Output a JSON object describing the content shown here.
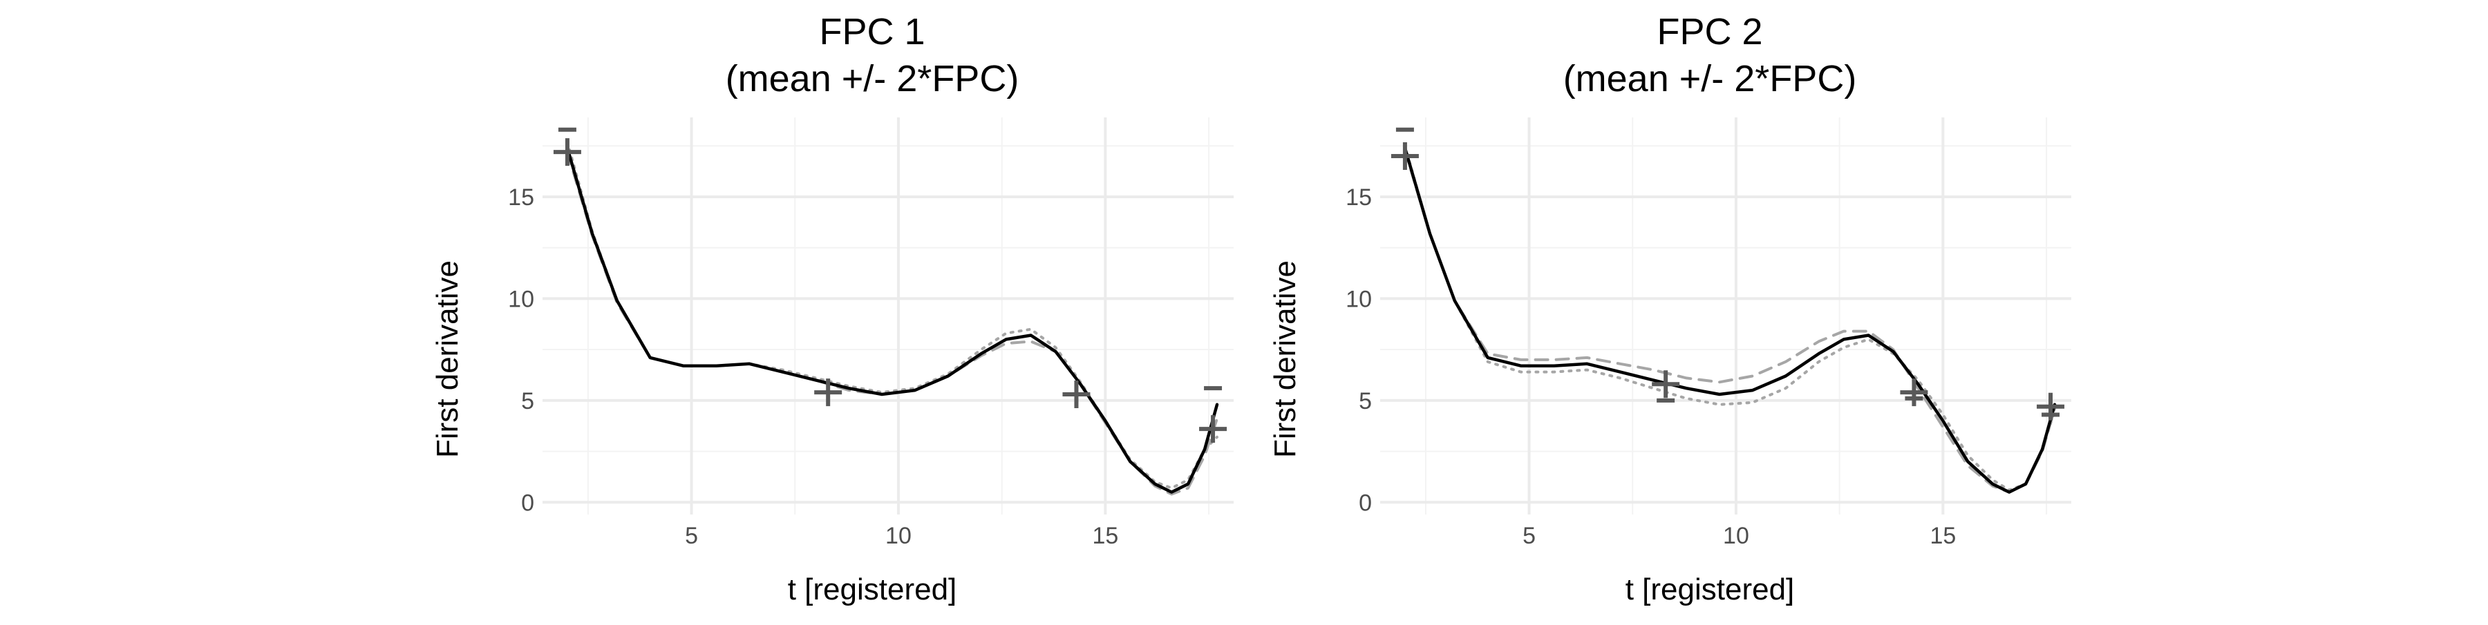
{
  "colors": {
    "mean": "#000000",
    "plus": "#a6a6a6",
    "minus": "#a6a6a6",
    "marker": "#595959",
    "grid": "#ebebeb"
  },
  "chart_data": [
    {
      "type": "line",
      "title": [
        "FPC 1",
        "(mean +/- 2*FPC)"
      ],
      "xlabel": "t [registered]",
      "ylabel": "First derivative",
      "xlim": [
        1.4,
        18.1
      ],
      "ylim": [
        -0.6,
        18.9
      ],
      "xticks": [
        5,
        10,
        15
      ],
      "yticks": [
        0,
        5,
        10,
        15
      ],
      "grid": true,
      "series": [
        {
          "role": "mean",
          "style": "solid",
          "x": [
            2,
            2.6,
            3.2,
            4,
            4.8,
            5.6,
            6.4,
            7.2,
            8,
            8.8,
            9.6,
            10.4,
            11.2,
            12,
            12.6,
            13.2,
            13.8,
            14.4,
            15,
            15.6,
            16.2,
            16.6,
            17.0,
            17.4,
            17.7
          ],
          "y": [
            17.4,
            13.2,
            9.9,
            7.1,
            6.7,
            6.7,
            6.8,
            6.4,
            6.0,
            5.6,
            5.3,
            5.5,
            6.2,
            7.3,
            8.0,
            8.2,
            7.4,
            5.8,
            4.0,
            2.0,
            0.9,
            0.5,
            0.9,
            2.6,
            4.8
          ]
        },
        {
          "role": "plus",
          "style": "dashed",
          "x": [
            2,
            2.6,
            3.2,
            4,
            4.8,
            5.6,
            6.4,
            7.2,
            8,
            8.8,
            9.6,
            10.4,
            11.2,
            12,
            12.6,
            13.2,
            13.8,
            14.4,
            15,
            15.6,
            16.2,
            16.6,
            17.0,
            17.4,
            17.7
          ],
          "y": [
            17.2,
            13.1,
            9.8,
            7.1,
            6.7,
            6.7,
            6.8,
            6.4,
            6.0,
            5.5,
            5.3,
            5.5,
            6.2,
            7.2,
            7.8,
            7.9,
            7.4,
            5.8,
            3.9,
            2.0,
            0.8,
            0.4,
            0.7,
            2.3,
            4.1
          ]
        },
        {
          "role": "minus",
          "style": "dotted",
          "x": [
            2,
            2.6,
            3.2,
            4,
            4.8,
            5.6,
            6.4,
            7.2,
            8,
            8.8,
            9.6,
            10.4,
            11.2,
            12,
            12.6,
            13.2,
            13.8,
            14.4,
            15,
            15.6,
            16.2,
            16.6,
            17.0,
            17.4,
            17.7
          ],
          "y": [
            17.7,
            13.3,
            9.9,
            7.1,
            6.7,
            6.7,
            6.8,
            6.5,
            6.1,
            5.7,
            5.4,
            5.6,
            6.3,
            7.5,
            8.3,
            8.5,
            7.6,
            5.9,
            4.0,
            2.1,
            1.0,
            0.7,
            1.1,
            2.6,
            3.2
          ]
        }
      ],
      "markers": [
        {
          "x": 2.0,
          "y": 17.2,
          "kind": "plus"
        },
        {
          "x": 2.0,
          "y": 18.3,
          "kind": "minus"
        },
        {
          "x": 8.3,
          "y": 5.4,
          "kind": "plus"
        },
        {
          "x": 14.3,
          "y": 5.3,
          "kind": "plus"
        },
        {
          "x": 17.6,
          "y": 3.6,
          "kind": "plus"
        },
        {
          "x": 17.6,
          "y": 5.6,
          "kind": "minus"
        }
      ]
    },
    {
      "type": "line",
      "title": [
        "FPC 2",
        "(mean +/- 2*FPC)"
      ],
      "xlabel": "t [registered]",
      "ylabel": "First derivative",
      "xlim": [
        1.4,
        18.1
      ],
      "ylim": [
        -0.6,
        18.9
      ],
      "xticks": [
        5,
        10,
        15
      ],
      "yticks": [
        0,
        5,
        10,
        15
      ],
      "grid": true,
      "series": [
        {
          "role": "mean",
          "style": "solid",
          "x": [
            2,
            2.6,
            3.2,
            4,
            4.8,
            5.6,
            6.4,
            7.2,
            8,
            8.8,
            9.6,
            10.4,
            11.2,
            12,
            12.6,
            13.2,
            13.8,
            14.4,
            15,
            15.6,
            16.2,
            16.6,
            17.0,
            17.4,
            17.7
          ],
          "y": [
            17.4,
            13.2,
            9.9,
            7.1,
            6.7,
            6.7,
            6.8,
            6.4,
            6.0,
            5.6,
            5.3,
            5.5,
            6.2,
            7.3,
            8.0,
            8.2,
            7.4,
            5.8,
            4.0,
            2.0,
            0.9,
            0.5,
            0.9,
            2.6,
            4.8
          ]
        },
        {
          "role": "plus",
          "style": "dashed",
          "x": [
            2,
            2.6,
            3.2,
            4,
            4.8,
            5.6,
            6.4,
            7.2,
            8,
            8.8,
            9.6,
            10.4,
            11.2,
            12,
            12.6,
            13.2,
            13.8,
            14.4,
            15,
            15.6,
            16.2,
            16.6,
            17.0,
            17.4,
            17.7
          ],
          "y": [
            17.3,
            13.2,
            9.9,
            7.3,
            7.0,
            7.0,
            7.1,
            6.8,
            6.5,
            6.1,
            5.9,
            6.2,
            6.9,
            7.9,
            8.4,
            8.4,
            7.5,
            5.6,
            3.7,
            1.8,
            0.8,
            0.5,
            0.9,
            2.5,
            4.6
          ]
        },
        {
          "role": "minus",
          "style": "dotted",
          "x": [
            2,
            2.6,
            3.2,
            4,
            4.8,
            5.6,
            6.4,
            7.2,
            8,
            8.8,
            9.6,
            10.4,
            11.2,
            12,
            12.6,
            13.2,
            13.8,
            14.4,
            15,
            15.6,
            16.2,
            16.6,
            17.0,
            17.4,
            17.7
          ],
          "y": [
            17.5,
            13.2,
            9.9,
            6.9,
            6.4,
            6.4,
            6.5,
            6.1,
            5.6,
            5.1,
            4.8,
            4.9,
            5.6,
            6.9,
            7.6,
            8.0,
            7.3,
            6.0,
            4.3,
            2.3,
            1.1,
            0.6,
            0.9,
            2.6,
            4.5
          ]
        }
      ],
      "markers": [
        {
          "x": 2.0,
          "y": 17.0,
          "kind": "plus"
        },
        {
          "x": 2.0,
          "y": 18.3,
          "kind": "minus"
        },
        {
          "x": 8.3,
          "y": 5.8,
          "kind": "plus"
        },
        {
          "x": 8.3,
          "y": 5.0,
          "kind": "minus"
        },
        {
          "x": 14.3,
          "y": 5.4,
          "kind": "plus"
        },
        {
          "x": 14.3,
          "y": 5.1,
          "kind": "minus"
        },
        {
          "x": 17.6,
          "y": 4.7,
          "kind": "plus"
        },
        {
          "x": 17.6,
          "y": 4.3,
          "kind": "minus"
        }
      ]
    }
  ]
}
